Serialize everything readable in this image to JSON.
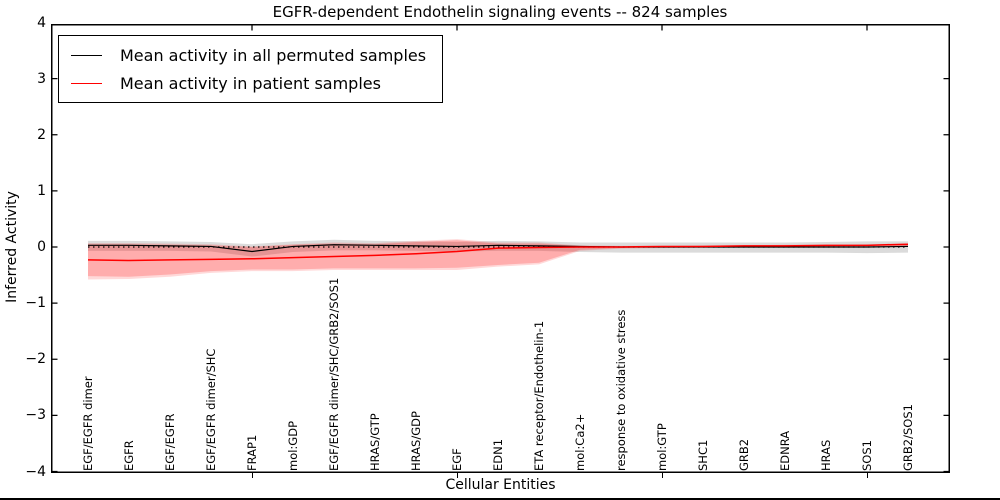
{
  "figure": {
    "title": "EGFR-dependent Endothelin signaling events -- 824 samples",
    "xlabel": "Cellular Entities",
    "ylabel": "Inferred Activity"
  },
  "legend": {
    "position": "upper left",
    "entries": [
      {
        "label": "Mean activity in all permuted samples",
        "color": "#000000"
      },
      {
        "label": "Mean activity in patient samples",
        "color": "#ff0000"
      }
    ]
  },
  "chart_data": {
    "type": "line",
    "title": "EGFR-dependent Endothelin signaling events -- 824 samples",
    "xlabel": "Cellular Entities",
    "ylabel": "Inferred Activity",
    "ylim": [
      -4,
      4
    ],
    "yticks": [
      4,
      3,
      2,
      1,
      0,
      -1,
      -2,
      -3,
      -4
    ],
    "ytick_labels": [
      "4",
      "3",
      "2",
      "1",
      "0",
      "−1",
      "−2",
      "−3",
      "−4"
    ],
    "grid": false,
    "legend_position": "upper left",
    "x_axis_tick_category_indices": [
      4,
      9,
      14,
      19
    ],
    "categories": [
      "EGF/EGFR dimer",
      "EGFR",
      "EGF/EGFR",
      "EGF/EGFR dimer/SHC",
      "FRAP1",
      "mol:GDP",
      "EGF/EGFR dimer/SHC/GRB2/SOS1",
      "HRAS/GTP",
      "HRAS/GDP",
      "EGF",
      "EDN1",
      "ETA receptor/Endothelin-1",
      "mol:Ca2+",
      "response to oxidative stress",
      "mol:GTP",
      "SHC1",
      "GRB2",
      "EDNRA",
      "HRAS",
      "SOS1",
      "GRB2/SOS1"
    ],
    "zero_line": {
      "value": 0,
      "style": "dotted",
      "color": "#000000"
    },
    "series": [
      {
        "name": "Mean activity in all permuted samples",
        "color": "#000000",
        "values": [
          0.03,
          0.03,
          0.02,
          0.01,
          -0.08,
          0.01,
          0.04,
          0.03,
          0.02,
          0.01,
          0.03,
          0.02,
          0.01,
          0.0,
          0.0,
          0.0,
          0.0,
          0.0,
          0.0,
          0.0,
          0.01
        ]
      },
      {
        "name": "Mean activity in patient samples",
        "color": "#ff0000",
        "values": [
          -0.23,
          -0.24,
          -0.23,
          -0.22,
          -0.21,
          -0.19,
          -0.17,
          -0.15,
          -0.12,
          -0.08,
          -0.02,
          -0.01,
          0.0,
          0.0,
          0.01,
          0.01,
          0.02,
          0.02,
          0.03,
          0.03,
          0.05
        ]
      }
    ],
    "bands": [
      {
        "name": "permuted-samples-band",
        "color": "#b0b0b0",
        "opacity": 0.45,
        "top": [
          0.11,
          0.11,
          0.1,
          0.09,
          0.05,
          0.1,
          0.13,
          0.11,
          0.1,
          0.09,
          0.11,
          0.1,
          0.08,
          0.08,
          0.08,
          0.08,
          0.08,
          0.08,
          0.09,
          0.1,
          0.1
        ],
        "bottom": [
          -0.07,
          -0.07,
          -0.07,
          -0.08,
          -0.17,
          -0.09,
          -0.06,
          -0.06,
          -0.07,
          -0.08,
          -0.07,
          -0.07,
          -0.09,
          -0.1,
          -0.1,
          -0.1,
          -0.1,
          -0.1,
          -0.1,
          -0.11,
          -0.1
        ]
      },
      {
        "name": "patient-samples-band-outer",
        "color": "#ff0000",
        "opacity": 0.15,
        "top": [
          0.07,
          0.07,
          0.06,
          0.05,
          0.01,
          0.05,
          0.08,
          0.07,
          0.11,
          0.14,
          0.08,
          0.08,
          0.03,
          0.02,
          0.02,
          0.03,
          0.03,
          0.04,
          0.04,
          0.05,
          0.06
        ],
        "bottom": [
          -0.58,
          -0.57,
          -0.53,
          -0.46,
          -0.43,
          -0.43,
          -0.41,
          -0.41,
          -0.41,
          -0.41,
          -0.35,
          -0.31,
          -0.07,
          -0.03,
          -0.02,
          -0.01,
          -0.01,
          -0.01,
          0.0,
          0.0,
          0.01
        ]
      },
      {
        "name": "patient-samples-band-inner",
        "color": "#ff0000",
        "opacity": 0.2,
        "top": [
          0.05,
          0.05,
          0.04,
          0.03,
          0.0,
          0.04,
          0.06,
          0.05,
          0.09,
          0.12,
          0.06,
          0.06,
          0.02,
          0.01,
          0.01,
          0.02,
          0.02,
          0.03,
          0.03,
          0.04,
          0.05
        ],
        "bottom": [
          -0.52,
          -0.53,
          -0.49,
          -0.43,
          -0.4,
          -0.4,
          -0.38,
          -0.38,
          -0.38,
          -0.37,
          -0.32,
          -0.28,
          -0.05,
          -0.02,
          -0.01,
          0.0,
          0.0,
          0.01,
          0.01,
          0.02,
          0.02
        ]
      }
    ]
  }
}
